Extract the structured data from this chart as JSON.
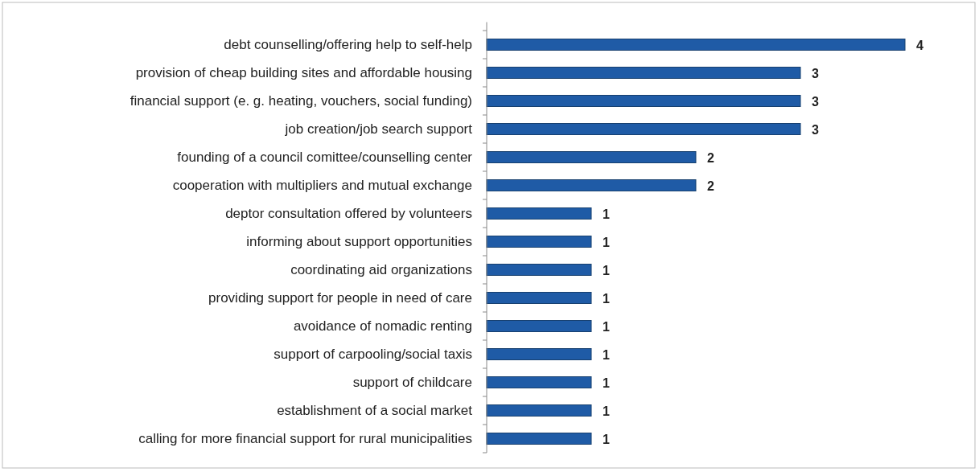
{
  "chart_data": {
    "type": "bar",
    "orientation": "horizontal",
    "data_labels": true,
    "categories": [
      "debt counselling/offering help to self-help",
      "provision of cheap building sites and affordable housing",
      "financial support (e. g. heating, vouchers, social funding)",
      "job creation/job search support",
      "founding of a council comittee/counselling center",
      "cooperation with multipliers and mutual exchange",
      "deptor consultation offered by volunteers",
      "informing about support opportunities",
      "coordinating aid organizations",
      "providing support for people in need of care",
      "avoidance of nomadic renting",
      "support of carpooling/social taxis",
      "support of childcare",
      "establishment of a social market",
      "calling for more financial support for rural municipalities"
    ],
    "values": [
      4,
      3,
      3,
      3,
      2,
      2,
      1,
      1,
      1,
      1,
      1,
      1,
      1,
      1,
      1
    ],
    "color": "#1f5ba6"
  }
}
